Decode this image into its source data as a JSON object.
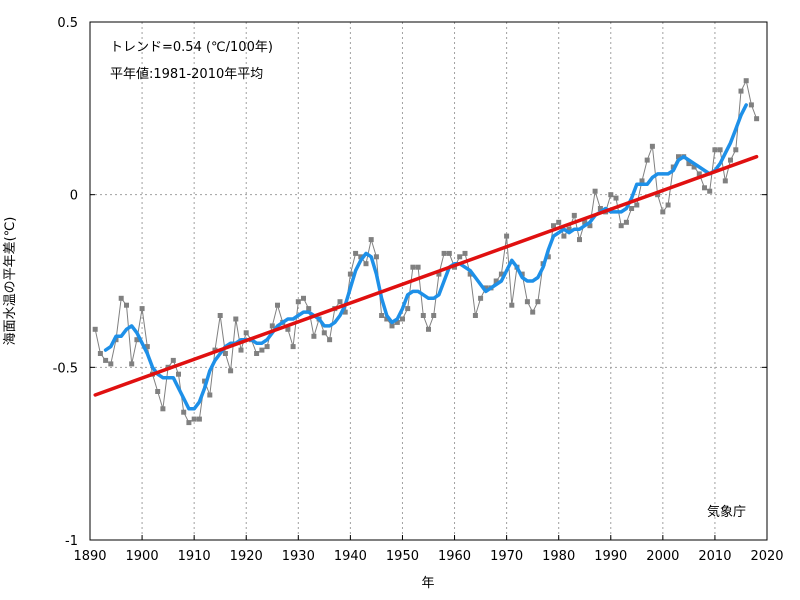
{
  "chart_data": {
    "type": "line",
    "title": "",
    "xlabel": "年",
    "ylabel": "海面水温の平年差(℃)",
    "xlim": [
      1890,
      2020
    ],
    "ylim": [
      -1,
      0.5
    ],
    "xticks": [
      1890,
      1900,
      1910,
      1920,
      1930,
      1940,
      1950,
      1960,
      1970,
      1980,
      1990,
      2000,
      2010,
      2020
    ],
    "yticks": [
      {
        "value": 0.5,
        "label": "0.5"
      },
      {
        "value": 0,
        "label": "0"
      },
      {
        "value": -0.5,
        "label": "-0.5"
      },
      {
        "value": -1,
        "label": "-1"
      }
    ],
    "grid": true,
    "annotations": {
      "trend": "トレンド=0.54 (℃/100年)",
      "baseline": "平年値:1981-2010年平均",
      "credit": "気象庁"
    },
    "colors": {
      "annual": "#808080",
      "running_mean": "#1e90e8",
      "trend": "#e01010",
      "grid": "#a0a0a0"
    },
    "series": [
      {
        "id": "annual",
        "x": [
          1891,
          1892,
          1893,
          1894,
          1895,
          1896,
          1897,
          1898,
          1899,
          1900,
          1901,
          1902,
          1903,
          1904,
          1905,
          1906,
          1907,
          1908,
          1909,
          1910,
          1911,
          1912,
          1913,
          1914,
          1915,
          1916,
          1917,
          1918,
          1919,
          1920,
          1921,
          1922,
          1923,
          1924,
          1925,
          1926,
          1927,
          1928,
          1929,
          1930,
          1931,
          1932,
          1933,
          1934,
          1935,
          1936,
          1937,
          1938,
          1939,
          1940,
          1941,
          1942,
          1943,
          1944,
          1945,
          1946,
          1947,
          1948,
          1949,
          1950,
          1951,
          1952,
          1953,
          1954,
          1955,
          1956,
          1957,
          1958,
          1959,
          1960,
          1961,
          1962,
          1963,
          1964,
          1965,
          1966,
          1967,
          1968,
          1969,
          1970,
          1971,
          1972,
          1973,
          1974,
          1975,
          1976,
          1977,
          1978,
          1979,
          1980,
          1981,
          1982,
          1983,
          1984,
          1985,
          1986,
          1987,
          1988,
          1989,
          1990,
          1991,
          1992,
          1993,
          1994,
          1995,
          1996,
          1997,
          1998,
          1999,
          2000,
          2001,
          2002,
          2003,
          2004,
          2005,
          2006,
          2007,
          2008,
          2009,
          2010,
          2011,
          2012,
          2013,
          2014,
          2015,
          2016,
          2017,
          2018
        ],
        "values": [
          -0.39,
          -0.46,
          -0.48,
          -0.49,
          -0.42,
          -0.3,
          -0.32,
          -0.49,
          -0.42,
          -0.33,
          -0.44,
          -0.52,
          -0.57,
          -0.62,
          -0.5,
          -0.48,
          -0.52,
          -0.63,
          -0.66,
          -0.65,
          -0.65,
          -0.54,
          -0.58,
          -0.45,
          -0.35,
          -0.46,
          -0.51,
          -0.36,
          -0.45,
          -0.4,
          -0.42,
          -0.46,
          -0.45,
          -0.44,
          -0.38,
          -0.32,
          -0.37,
          -0.39,
          -0.44,
          -0.31,
          -0.3,
          -0.33,
          -0.41,
          -0.36,
          -0.4,
          -0.42,
          -0.33,
          -0.31,
          -0.34,
          -0.23,
          -0.17,
          -0.18,
          -0.2,
          -0.13,
          -0.18,
          -0.35,
          -0.36,
          -0.38,
          -0.37,
          -0.36,
          -0.33,
          -0.21,
          -0.21,
          -0.35,
          -0.39,
          -0.35,
          -0.23,
          -0.17,
          -0.17,
          -0.21,
          -0.18,
          -0.17,
          -0.23,
          -0.35,
          -0.3,
          -0.27,
          -0.27,
          -0.25,
          -0.23,
          -0.12,
          -0.32,
          -0.21,
          -0.23,
          -0.31,
          -0.34,
          -0.31,
          -0.2,
          -0.18,
          -0.09,
          -0.08,
          -0.12,
          -0.1,
          -0.06,
          -0.13,
          -0.08,
          -0.09,
          0.01,
          -0.04,
          -0.05,
          0.0,
          -0.01,
          -0.09,
          -0.08,
          -0.04,
          -0.03,
          0.04,
          0.1,
          0.14,
          0.0,
          -0.05,
          -0.03,
          0.08,
          0.11,
          0.11,
          0.09,
          0.08,
          0.06,
          0.02,
          0.01,
          0.13,
          0.13,
          0.04,
          0.1,
          0.13,
          0.3,
          0.33,
          0.26,
          0.22
        ]
      },
      {
        "id": "running_mean",
        "x": [
          1893,
          1894,
          1895,
          1896,
          1897,
          1898,
          1899,
          1900,
          1901,
          1902,
          1903,
          1904,
          1905,
          1906,
          1907,
          1908,
          1909,
          1910,
          1911,
          1912,
          1913,
          1914,
          1915,
          1916,
          1917,
          1918,
          1919,
          1920,
          1921,
          1922,
          1923,
          1924,
          1925,
          1926,
          1927,
          1928,
          1929,
          1930,
          1931,
          1932,
          1933,
          1934,
          1935,
          1936,
          1937,
          1938,
          1939,
          1940,
          1941,
          1942,
          1943,
          1944,
          1945,
          1946,
          1947,
          1948,
          1949,
          1950,
          1951,
          1952,
          1953,
          1954,
          1955,
          1956,
          1957,
          1958,
          1959,
          1960,
          1961,
          1962,
          1963,
          1964,
          1965,
          1966,
          1967,
          1968,
          1969,
          1970,
          1971,
          1972,
          1973,
          1974,
          1975,
          1976,
          1977,
          1978,
          1979,
          1980,
          1981,
          1982,
          1983,
          1984,
          1985,
          1986,
          1987,
          1988,
          1989,
          1990,
          1991,
          1992,
          1993,
          1994,
          1995,
          1996,
          1997,
          1998,
          1999,
          2000,
          2001,
          2002,
          2003,
          2004,
          2005,
          2006,
          2007,
          2008,
          2009,
          2010,
          2011,
          2012,
          2013,
          2014,
          2015,
          2016
        ],
        "values": [
          -0.45,
          -0.44,
          -0.41,
          -0.41,
          -0.39,
          -0.38,
          -0.4,
          -0.43,
          -0.46,
          -0.5,
          -0.52,
          -0.53,
          -0.53,
          -0.53,
          -0.56,
          -0.59,
          -0.62,
          -0.62,
          -0.6,
          -0.56,
          -0.51,
          -0.48,
          -0.46,
          -0.44,
          -0.43,
          -0.43,
          -0.42,
          -0.42,
          -0.42,
          -0.43,
          -0.43,
          -0.42,
          -0.4,
          -0.38,
          -0.37,
          -0.36,
          -0.36,
          -0.35,
          -0.34,
          -0.34,
          -0.35,
          -0.36,
          -0.38,
          -0.38,
          -0.37,
          -0.35,
          -0.32,
          -0.27,
          -0.22,
          -0.19,
          -0.17,
          -0.18,
          -0.23,
          -0.3,
          -0.35,
          -0.37,
          -0.36,
          -0.33,
          -0.29,
          -0.28,
          -0.28,
          -0.29,
          -0.3,
          -0.3,
          -0.29,
          -0.25,
          -0.21,
          -0.2,
          -0.2,
          -0.21,
          -0.22,
          -0.24,
          -0.26,
          -0.28,
          -0.27,
          -0.26,
          -0.25,
          -0.22,
          -0.19,
          -0.21,
          -0.24,
          -0.25,
          -0.25,
          -0.24,
          -0.21,
          -0.16,
          -0.12,
          -0.11,
          -0.1,
          -0.11,
          -0.1,
          -0.1,
          -0.09,
          -0.08,
          -0.06,
          -0.05,
          -0.04,
          -0.05,
          -0.05,
          -0.05,
          -0.04,
          -0.01,
          0.03,
          0.03,
          0.03,
          0.05,
          0.06,
          0.06,
          0.06,
          0.07,
          0.1,
          0.11,
          0.1,
          0.09,
          0.08,
          0.07,
          0.06,
          0.07,
          0.09,
          0.12,
          0.15,
          0.19,
          0.23,
          0.26
        ]
      },
      {
        "id": "trend",
        "x": [
          1891,
          2018
        ],
        "values": [
          -0.58,
          0.11
        ]
      }
    ]
  }
}
